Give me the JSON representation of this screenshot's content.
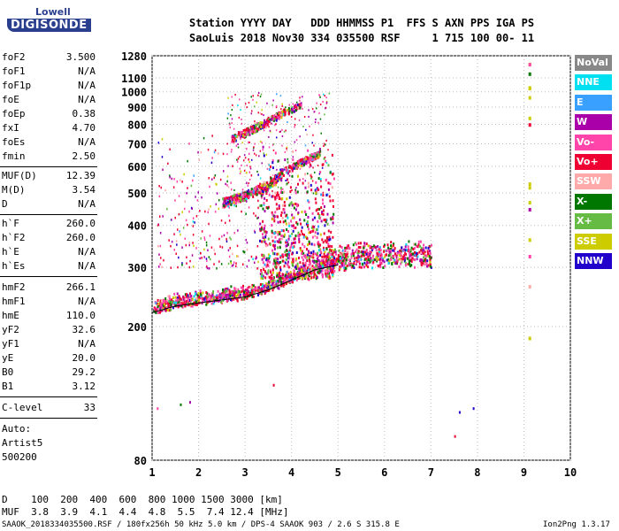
{
  "logo": {
    "line1": "Lowell",
    "line2": "DIGISONDE"
  },
  "header": {
    "line1": "Station YYYY DAY   DDD HHMMSS P1  FFS S AXN PPS IGA PS",
    "line2": "SaoLuis 2018 Nov30 334 035500 RSF     1 715 100 00- 11"
  },
  "params_group1": [
    {
      "name": "foF2",
      "value": "3.500"
    },
    {
      "name": "foF1",
      "value": "N/A"
    },
    {
      "name": "foF1p",
      "value": "N/A"
    },
    {
      "name": "foE",
      "value": "N/A"
    },
    {
      "name": "foEp",
      "value": "0.38"
    },
    {
      "name": "fxI",
      "value": "4.70"
    },
    {
      "name": "foEs",
      "value": "N/A"
    },
    {
      "name": "fmin",
      "value": "2.50"
    }
  ],
  "params_group2": [
    {
      "name": "MUF(D)",
      "value": "12.39"
    },
    {
      "name": "M(D)",
      "value": "3.54"
    },
    {
      "name": "D",
      "value": "N/A"
    }
  ],
  "params_group3": [
    {
      "name": "h`F",
      "value": "260.0"
    },
    {
      "name": "h`F2",
      "value": "260.0"
    },
    {
      "name": "h`E",
      "value": "N/A"
    },
    {
      "name": "h`Es",
      "value": "N/A"
    }
  ],
  "params_group4": [
    {
      "name": "hmF2",
      "value": "266.1"
    },
    {
      "name": "hmF1",
      "value": "N/A"
    },
    {
      "name": "hmE",
      "value": "110.0"
    },
    {
      "name": "yF2",
      "value": "32.6"
    },
    {
      "name": "yF1",
      "value": "N/A"
    },
    {
      "name": "yE",
      "value": "20.0"
    },
    {
      "name": "B0",
      "value": "29.2"
    },
    {
      "name": "B1",
      "value": "3.12"
    }
  ],
  "clevel": {
    "name": "C-level",
    "value": "33"
  },
  "notes": [
    "Auto:",
    "Artist5",
    "500200"
  ],
  "bottom": {
    "d_row": "D    100  200  400  600  800 1000 1500 3000 [km]",
    "muf_row": "MUF  3.8  3.9  4.1  4.4  4.8  5.5  7.4 12.4 [MHz]",
    "footer_left": "SAAOK_2018334035500.RSF / 180fx256h 50 kHz 5.0 km / DPS-4 SAAOK 903 / 2.6 S 315.8 E",
    "footer_right": "Ion2Png 1.3.17"
  },
  "legend": [
    {
      "label": "NoVal",
      "color": "#888888"
    },
    {
      "label": "NNE",
      "color": "#00e0f0"
    },
    {
      "label": "E",
      "color": "#3aa0ff"
    },
    {
      "label": "W",
      "color": "#aa00aa"
    },
    {
      "label": "Vo-",
      "color": "#ff44aa"
    },
    {
      "label": "Vo+",
      "color": "#ee0033"
    },
    {
      "label": "SSW",
      "color": "#ffaaaa"
    },
    {
      "label": "X-",
      "color": "#007700"
    },
    {
      "label": "X+",
      "color": "#66bb44"
    },
    {
      "label": "SSE",
      "color": "#cccc00"
    },
    {
      "label": "NNW",
      "color": "#2200cc"
    }
  ],
  "chart_data": {
    "type": "scatter",
    "xlabel": "",
    "ylabel": "",
    "x_ticks": [
      "1",
      "2",
      "3",
      "4",
      "5",
      "6",
      "7",
      "8",
      "9",
      "10"
    ],
    "xlim": [
      1,
      10
    ],
    "y_ticks": [
      "80",
      "200",
      "300",
      "400",
      "500",
      "600",
      "700",
      "800",
      "900",
      "1000",
      "1100",
      "1280"
    ],
    "y_tick_values": [
      80,
      200,
      300,
      400,
      500,
      600,
      700,
      800,
      900,
      1000,
      1100,
      1280
    ],
    "ylim": [
      80,
      1280
    ],
    "y_scale": "log",
    "grid": true,
    "traces": [
      {
        "name": "F2 trace",
        "points": [
          [
            1.0,
            225
          ],
          [
            1.5,
            235
          ],
          [
            2.0,
            240
          ],
          [
            2.5,
            245
          ],
          [
            3.0,
            250
          ],
          [
            3.5,
            262
          ],
          [
            4.0,
            280
          ],
          [
            4.5,
            300
          ],
          [
            5.0,
            310
          ],
          [
            5.5,
            318
          ],
          [
            6.0,
            320
          ],
          [
            6.5,
            322
          ],
          [
            7.0,
            320
          ]
        ]
      },
      {
        "name": "2F trace",
        "points": [
          [
            2.5,
            470
          ],
          [
            3.0,
            495
          ],
          [
            3.5,
            530
          ],
          [
            3.8,
            580
          ],
          [
            4.2,
            620
          ],
          [
            4.6,
            660
          ]
        ]
      },
      {
        "name": "3F trace",
        "points": [
          [
            2.7,
            730
          ],
          [
            3.0,
            760
          ],
          [
            3.4,
            810
          ],
          [
            3.8,
            870
          ],
          [
            4.2,
            920
          ]
        ]
      },
      {
        "name": "vertical streaks",
        "points": [
          [
            9.1,
            1200
          ],
          [
            9.1,
            880
          ],
          [
            9.1,
            260
          ],
          [
            9.1,
            180
          ]
        ]
      }
    ]
  }
}
